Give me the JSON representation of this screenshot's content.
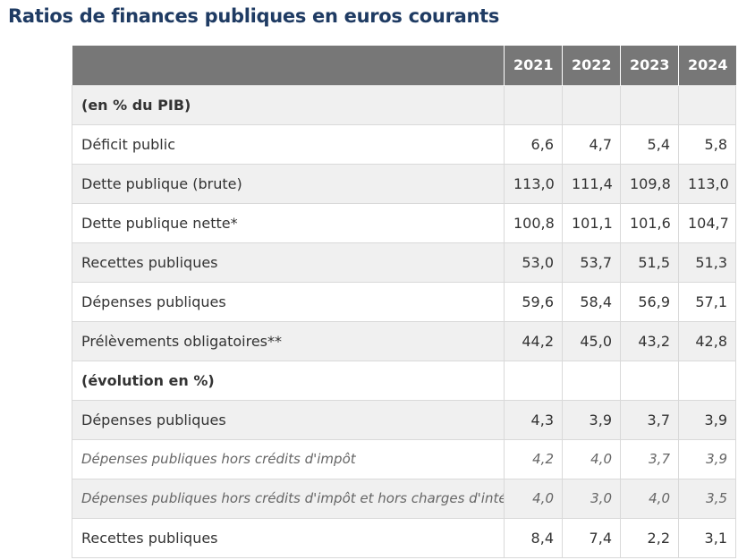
{
  "title": "Ratios de finances publiques en euros courants",
  "table": {
    "columns": [
      "2021",
      "2022",
      "2023",
      "2024"
    ],
    "rows": [
      {
        "label": "(en % du PIB)",
        "values": [
          "",
          "",
          "",
          ""
        ],
        "kind": "section"
      },
      {
        "label": "Déficit public",
        "values": [
          "6,6",
          "4,7",
          "5,4",
          "5,8"
        ],
        "kind": "normal"
      },
      {
        "label": "Dette publique (brute)",
        "values": [
          "113,0",
          "111,4",
          "109,8",
          "113,0"
        ],
        "kind": "normal"
      },
      {
        "label": "Dette publique nette*",
        "values": [
          "100,8",
          "101,1",
          "101,6",
          "104,7"
        ],
        "kind": "normal"
      },
      {
        "label": "Recettes publiques",
        "values": [
          "53,0",
          "53,7",
          "51,5",
          "51,3"
        ],
        "kind": "normal"
      },
      {
        "label": "Dépenses publiques",
        "values": [
          "59,6",
          "58,4",
          "56,9",
          "57,1"
        ],
        "kind": "normal"
      },
      {
        "label": "Prélèvements obligatoires**",
        "values": [
          "44,2",
          "45,0",
          "43,2",
          "42,8"
        ],
        "kind": "normal"
      },
      {
        "label": "(évolution en %)",
        "values": [
          "",
          "",
          "",
          ""
        ],
        "kind": "section"
      },
      {
        "label": "Dépenses publiques",
        "values": [
          "4,3",
          "3,9",
          "3,7",
          "3,9"
        ],
        "kind": "normal"
      },
      {
        "label": "Dépenses publiques hors crédits d'impôt",
        "values": [
          "4,2",
          "4,0",
          "3,7",
          "3,9"
        ],
        "kind": "italic"
      },
      {
        "label": "Dépenses publiques hors crédits d'impôt et hors charges d'intérêt",
        "values": [
          "4,0",
          "3,0",
          "4,0",
          "3,5"
        ],
        "kind": "italic"
      },
      {
        "label": "Recettes publiques",
        "values": [
          "8,4",
          "7,4",
          "2,2",
          "3,1"
        ],
        "kind": "normal"
      }
    ]
  }
}
